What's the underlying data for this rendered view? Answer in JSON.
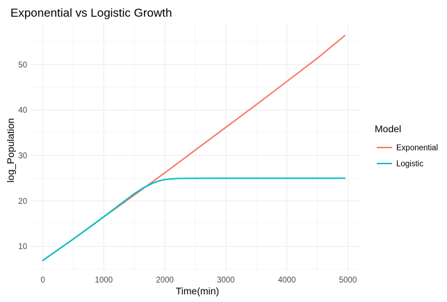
{
  "chart_data": {
    "type": "line",
    "title": "Exponential vs Logistic Growth",
    "xlabel": "Time(min)",
    "ylabel": "log_Population",
    "xlim": [
      -200,
      5200
    ],
    "ylim": [
      4.5,
      59
    ],
    "x_ticks": [
      0,
      1000,
      2000,
      3000,
      4000,
      5000
    ],
    "y_ticks": [
      10,
      20,
      30,
      40,
      50
    ],
    "grid": true,
    "legend": {
      "title": "Model",
      "position": "right"
    },
    "series": [
      {
        "name": "Exponential",
        "color": "#F8766D",
        "x": [
          0,
          500,
          1000,
          1500,
          2000,
          2500,
          3000,
          3500,
          4000,
          4500,
          4950
        ],
        "y": [
          6.9,
          11.6,
          16.5,
          21.3,
          26.2,
          31.2,
          36.2,
          41.2,
          46.3,
          51.4,
          56.4
        ]
      },
      {
        "name": "Logistic",
        "color": "#00BFC4",
        "x": [
          0,
          500,
          1000,
          1300,
          1500,
          1650,
          1800,
          1900,
          2000,
          2100,
          2200,
          2400,
          3000,
          4000,
          4950
        ],
        "y": [
          6.9,
          11.6,
          16.5,
          19.6,
          21.6,
          22.9,
          23.9,
          24.4,
          24.7,
          24.85,
          24.93,
          24.97,
          25.0,
          25.0,
          25.0
        ]
      }
    ]
  }
}
